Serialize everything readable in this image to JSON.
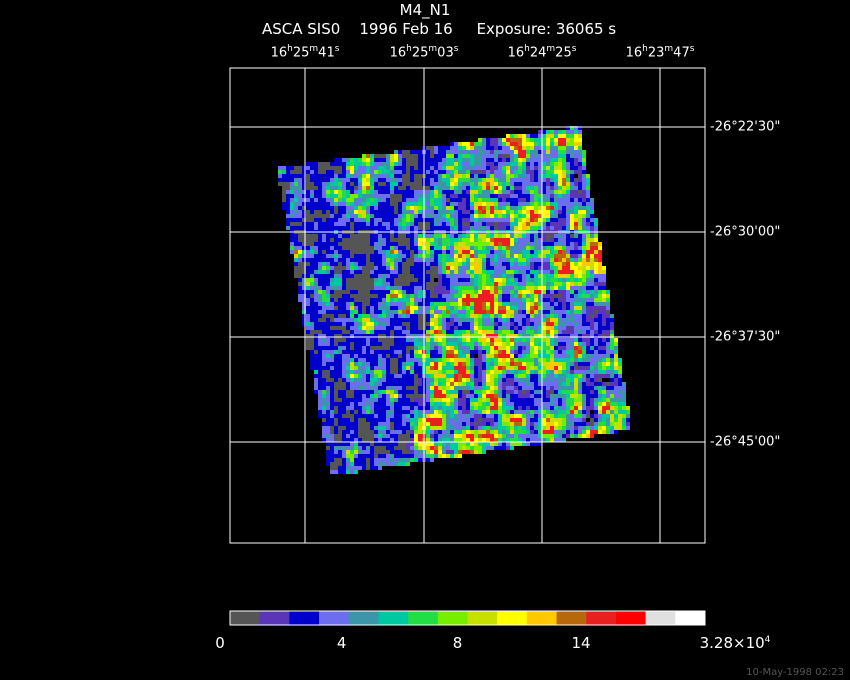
{
  "header": {
    "title": "M4_N1",
    "subtitle": "ASCA SIS0    1996 Feb 16     Exposure: 36065 s"
  },
  "axes": {
    "ra_labels": [
      {
        "h": "16",
        "m": "25",
        "s": "41"
      },
      {
        "h": "16",
        "m": "25",
        "s": "03"
      },
      {
        "h": "16",
        "m": "24",
        "s": "25"
      },
      {
        "h": "16",
        "m": "23",
        "s": "47"
      }
    ],
    "dec_labels": [
      "-26°22'30\"",
      "-26°30'00\"",
      "-26°37'30\"",
      "-26°45'00\""
    ]
  },
  "colorbar": {
    "colors": [
      "#555555",
      "#5a35b8",
      "#0000cc",
      "#6d6df0",
      "#3a96a8",
      "#00c8a0",
      "#22dd44",
      "#77ee00",
      "#c8e000",
      "#ffff00",
      "#ffc800",
      "#b8680a",
      "#e82020",
      "#ff0000",
      "#e0e0e0",
      "#ffffff"
    ],
    "ticks": [
      {
        "label": "0",
        "frac": 0.0
      },
      {
        "label": "4",
        "frac": 0.235
      },
      {
        "label": "8",
        "frac": 0.479
      },
      {
        "label": "14",
        "frac": 0.739
      },
      {
        "label": "3.28×10",
        "sup": "4",
        "frac": 1.0
      }
    ]
  },
  "footer": "10-May-1998 02:23"
}
